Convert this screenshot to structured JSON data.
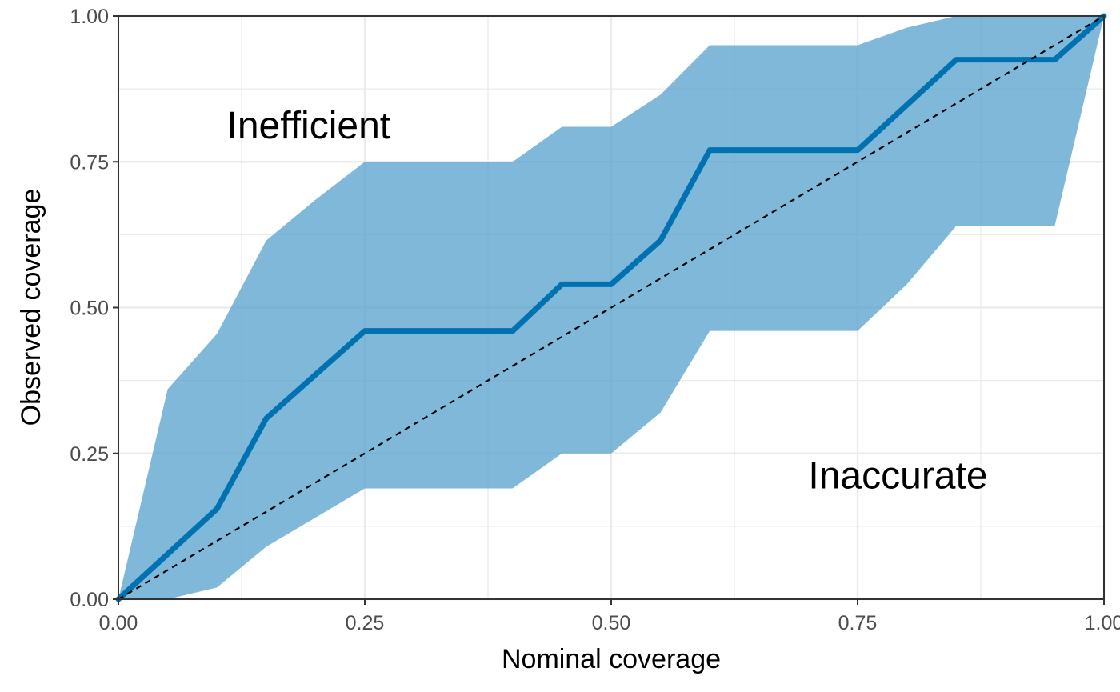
{
  "chart_data": {
    "type": "line",
    "title": "",
    "xlabel": "Nominal coverage",
    "ylabel": "Observed coverage",
    "xlim": [
      0,
      1
    ],
    "ylim": [
      0,
      1
    ],
    "x_ticks": [
      "0.00",
      "0.25",
      "0.50",
      "0.75",
      "1.00"
    ],
    "y_ticks": [
      "0.00",
      "0.25",
      "0.50",
      "0.75",
      "1.00"
    ],
    "grid": true,
    "legend": "none",
    "colors": {
      "line": "#0072b2",
      "band": "#56a0ce",
      "reference": "#000000"
    },
    "band": {
      "x": [
        0.0,
        0.05,
        0.1,
        0.15,
        0.2,
        0.25,
        0.3,
        0.35,
        0.4,
        0.45,
        0.5,
        0.55,
        0.6,
        0.65,
        0.7,
        0.75,
        0.8,
        0.85,
        0.9,
        0.95,
        1.0
      ],
      "upper": [
        0.0,
        0.36,
        0.455,
        0.615,
        0.685,
        0.75,
        0.75,
        0.75,
        0.75,
        0.81,
        0.81,
        0.865,
        0.95,
        0.95,
        0.95,
        0.95,
        0.98,
        1.0,
        1.0,
        1.0,
        1.0
      ],
      "lower": [
        0.0,
        0.0,
        0.02,
        0.09,
        0.14,
        0.19,
        0.19,
        0.19,
        0.19,
        0.25,
        0.25,
        0.32,
        0.46,
        0.46,
        0.46,
        0.46,
        0.54,
        0.64,
        0.64,
        0.64,
        1.0
      ]
    },
    "series": [
      {
        "x": [
          0.0,
          0.1,
          0.15,
          0.25,
          0.4,
          0.45,
          0.5,
          0.55,
          0.6,
          0.75,
          0.85,
          0.95,
          1.0
        ],
        "y": [
          0.0,
          0.155,
          0.31,
          0.46,
          0.46,
          0.54,
          0.54,
          0.615,
          0.77,
          0.77,
          0.925,
          0.925,
          1.0
        ]
      }
    ],
    "reference_line": {
      "x": [
        0,
        1
      ],
      "y": [
        0,
        1
      ],
      "style": "dashed"
    },
    "annotations": [
      {
        "text": "Inefficient",
        "x": 0.11,
        "y": 0.79
      },
      {
        "text": "Inaccurate",
        "x": 0.7,
        "y": 0.19
      }
    ]
  }
}
